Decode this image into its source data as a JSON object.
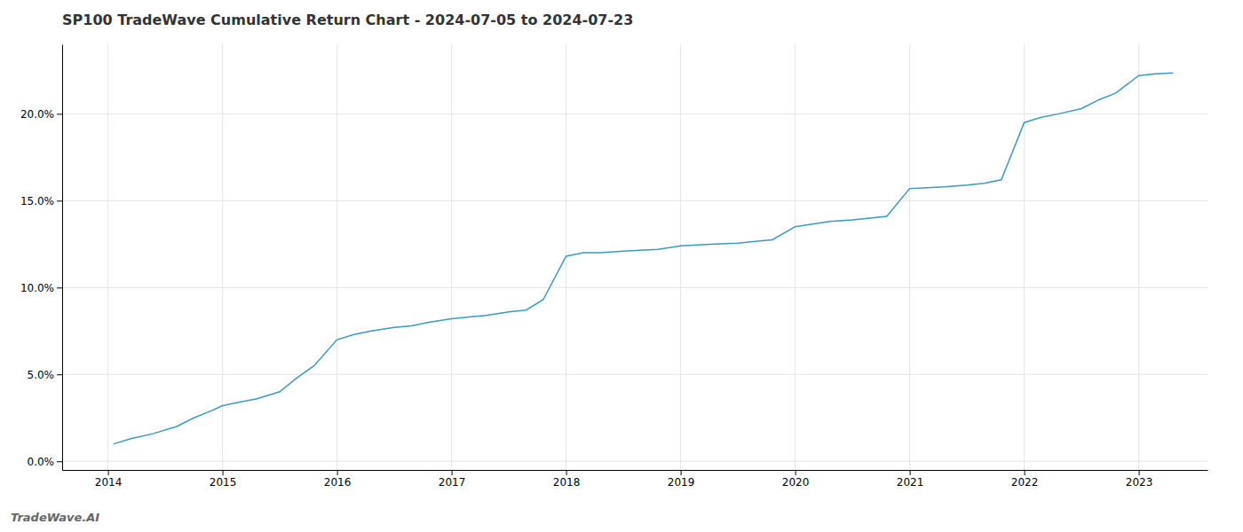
{
  "chart_data": {
    "type": "line",
    "title": "SP100 TradeWave Cumulative Return Chart - 2024-07-05 to 2024-07-23",
    "annotations": [
      "TradeWave.AI"
    ],
    "x": [
      2014.05,
      2014.2,
      2014.4,
      2014.6,
      2014.75,
      2014.9,
      2015.0,
      2015.15,
      2015.3,
      2015.5,
      2015.65,
      2015.8,
      2016.0,
      2016.15,
      2016.3,
      2016.5,
      2016.65,
      2016.8,
      2017.0,
      2017.15,
      2017.3,
      2017.5,
      2017.65,
      2017.8,
      2018.0,
      2018.15,
      2018.3,
      2018.5,
      2018.65,
      2018.8,
      2019.0,
      2019.15,
      2019.3,
      2019.5,
      2019.65,
      2019.8,
      2020.0,
      2020.15,
      2020.3,
      2020.5,
      2020.65,
      2020.8,
      2021.0,
      2021.15,
      2021.3,
      2021.5,
      2021.65,
      2021.8,
      2022.0,
      2022.15,
      2022.3,
      2022.5,
      2022.65,
      2022.8,
      2023.0,
      2023.15,
      2023.3
    ],
    "values": [
      1.0,
      1.3,
      1.6,
      2.0,
      2.5,
      2.9,
      3.2,
      3.4,
      3.6,
      4.0,
      4.8,
      5.5,
      7.0,
      7.3,
      7.5,
      7.7,
      7.8,
      8.0,
      8.2,
      8.3,
      8.4,
      8.6,
      8.7,
      9.3,
      11.8,
      12.0,
      12.0,
      12.1,
      12.15,
      12.2,
      12.4,
      12.45,
      12.5,
      12.55,
      12.65,
      12.75,
      13.5,
      13.65,
      13.8,
      13.9,
      14.0,
      14.1,
      15.7,
      15.75,
      15.8,
      15.9,
      16.0,
      16.2,
      19.5,
      19.8,
      20.0,
      20.3,
      20.8,
      21.2,
      22.2,
      22.3,
      22.35
    ],
    "color": "#3a9abf",
    "xlim": [
      2013.6,
      2023.6
    ],
    "ylim": [
      -0.5,
      24.0
    ],
    "xticks": [
      2014,
      2015,
      2016,
      2017,
      2018,
      2019,
      2020,
      2021,
      2022,
      2023
    ],
    "yticks": [
      {
        "value": 0.0,
        "label": "0.0%"
      },
      {
        "value": 5.0,
        "label": "5.0%"
      },
      {
        "value": 10.0,
        "label": "10.0%"
      },
      {
        "value": 15.0,
        "label": "15.0%"
      },
      {
        "value": 20.0,
        "label": "20.0%"
      }
    ],
    "grid": true
  }
}
